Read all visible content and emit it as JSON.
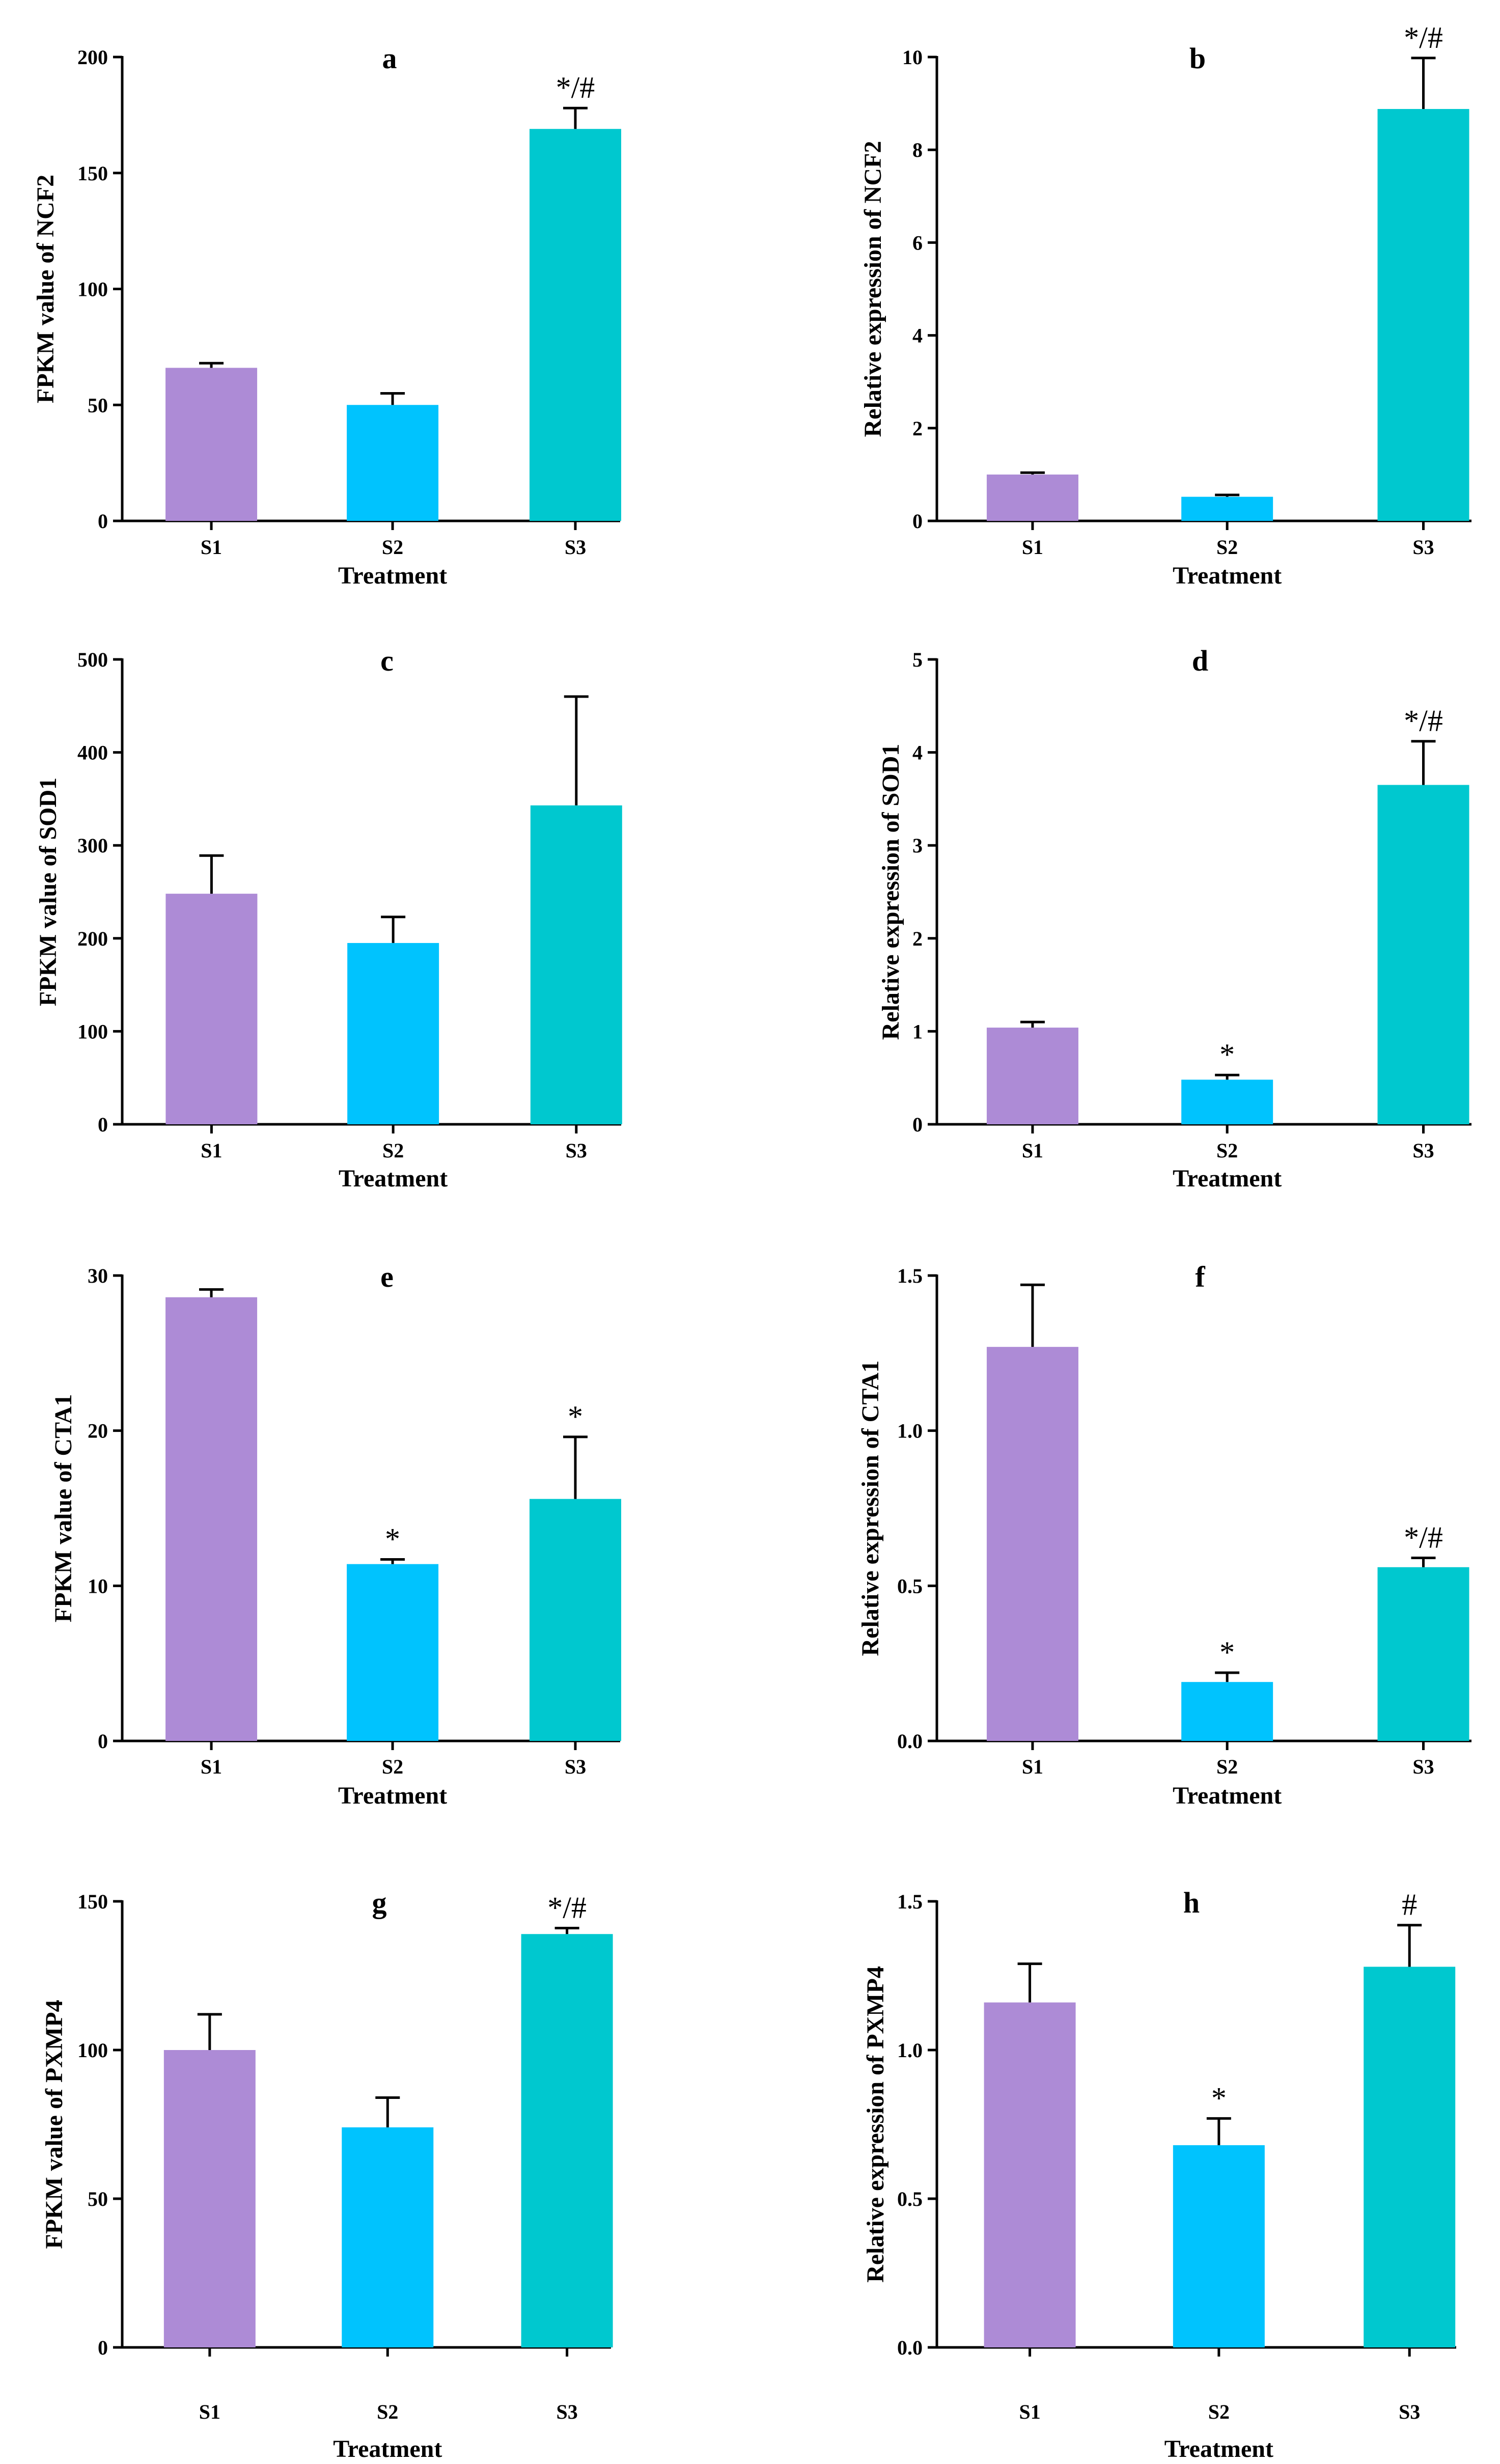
{
  "figure": {
    "colors": {
      "S1": "#ad8bd6",
      "S2": "#00c3fe",
      "S3": "#00c8cf",
      "axis": "#000000"
    }
  },
  "chart_data": [
    {
      "panel": "a",
      "type": "bar",
      "title": "a",
      "categories": [
        "S1",
        "S2",
        "S3"
      ],
      "values": [
        66,
        50,
        169
      ],
      "errors": [
        2,
        5,
        9
      ],
      "annotations": [
        "",
        "",
        "*/#"
      ],
      "xlabel": "Treatment",
      "ylabel": "FPKM value of NCF2",
      "ylim": [
        0,
        200
      ],
      "yticks": [
        0,
        50,
        100,
        150,
        200
      ],
      "ytick_labels": [
        "0",
        "50",
        "100",
        "150",
        "200"
      ]
    },
    {
      "panel": "b",
      "type": "bar",
      "title": "b",
      "categories": [
        "S1",
        "S2",
        "S3"
      ],
      "values": [
        1.0,
        0.52,
        8.88
      ],
      "errors": [
        0.04,
        0.04,
        1.1
      ],
      "annotations": [
        "",
        "",
        "*/#"
      ],
      "xlabel": "Treatment",
      "ylabel": "Relative expression of NCF2",
      "ylim": [
        0,
        10
      ],
      "yticks": [
        0,
        2,
        4,
        6,
        8,
        10
      ],
      "ytick_labels": [
        "0",
        "2",
        "4",
        "6",
        "8",
        "10"
      ]
    },
    {
      "panel": "c",
      "type": "bar",
      "title": "c",
      "categories": [
        "S1",
        "S2",
        "S3"
      ],
      "values": [
        248,
        195,
        343
      ],
      "errors": [
        41,
        28,
        117
      ],
      "annotations": [
        "",
        "",
        ""
      ],
      "xlabel": "Treatment",
      "ylabel": "FPKM value of SOD1",
      "ylim": [
        0,
        500
      ],
      "yticks": [
        0,
        100,
        200,
        300,
        400,
        500
      ],
      "ytick_labels": [
        "0",
        "100",
        "200",
        "300",
        "400",
        "500"
      ]
    },
    {
      "panel": "d",
      "type": "bar",
      "title": "d",
      "categories": [
        "S1",
        "S2",
        "S3"
      ],
      "values": [
        1.04,
        0.48,
        3.65
      ],
      "errors": [
        0.06,
        0.05,
        0.47
      ],
      "annotations": [
        "",
        "*",
        "*/#"
      ],
      "xlabel": "Treatment",
      "ylabel": "Relative expression of SOD1",
      "ylim": [
        0,
        5
      ],
      "yticks": [
        0,
        1,
        2,
        3,
        4,
        5
      ],
      "ytick_labels": [
        "0",
        "1",
        "2",
        "3",
        "4",
        "5"
      ]
    },
    {
      "panel": "e",
      "type": "bar",
      "title": "e",
      "categories": [
        "S1",
        "S2",
        "S3"
      ],
      "values": [
        28.6,
        11.4,
        15.6
      ],
      "errors": [
        0.5,
        0.3,
        4.0
      ],
      "annotations": [
        "",
        "*",
        "*"
      ],
      "xlabel": "Treatment",
      "ylabel": "FPKM value of CTA1",
      "ylim": [
        0,
        30
      ],
      "yticks": [
        0,
        10,
        20,
        30
      ],
      "ytick_labels": [
        "0",
        "10",
        "20",
        "30"
      ]
    },
    {
      "panel": "f",
      "type": "bar",
      "title": "f",
      "categories": [
        "S1",
        "S2",
        "S3"
      ],
      "values": [
        1.27,
        0.19,
        0.56
      ],
      "errors": [
        0.2,
        0.03,
        0.03
      ],
      "annotations": [
        "",
        "*",
        "*/#"
      ],
      "xlabel": "Treatment",
      "ylabel": "Relative expression of CTA1",
      "ylim": [
        0,
        1.5
      ],
      "yticks": [
        0,
        0.5,
        1.0,
        1.5
      ],
      "ytick_labels": [
        "0.0",
        "0.5",
        "1.0",
        "1.5"
      ]
    },
    {
      "panel": "g",
      "type": "bar",
      "title": "g",
      "categories": [
        "S1",
        "S2",
        "S3"
      ],
      "values": [
        100,
        74,
        139
      ],
      "errors": [
        12,
        10,
        2
      ],
      "annotations": [
        "",
        "",
        "*/#"
      ],
      "xlabel": "Treatment",
      "ylabel": "FPKM value of PXMP4",
      "ylim": [
        0,
        150
      ],
      "yticks": [
        0,
        50,
        100,
        150
      ],
      "ytick_labels": [
        "0",
        "50",
        "100",
        "150"
      ]
    },
    {
      "panel": "h",
      "type": "bar",
      "title": "h",
      "categories": [
        "S1",
        "S2",
        "S3"
      ],
      "values": [
        1.16,
        0.68,
        1.28
      ],
      "errors": [
        0.13,
        0.09,
        0.14
      ],
      "annotations": [
        "",
        "*",
        "#"
      ],
      "xlabel": "Treatment",
      "ylabel": "Relative expression of PXMP4",
      "ylim": [
        0,
        1.5
      ],
      "yticks": [
        0,
        0.5,
        1.0,
        1.5
      ],
      "ytick_labels": [
        "0.0",
        "0.5",
        "1.0",
        "1.5"
      ]
    }
  ]
}
